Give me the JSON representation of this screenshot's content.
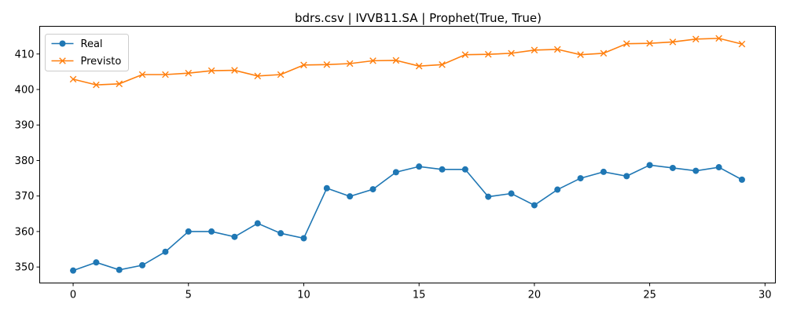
{
  "chart_data": {
    "type": "line",
    "title": "bdrs.csv | IVVB11.SA | Prophet(True, True)",
    "xlabel": "",
    "ylabel": "",
    "x": [
      0,
      1,
      2,
      3,
      4,
      5,
      6,
      7,
      8,
      9,
      10,
      11,
      12,
      13,
      14,
      15,
      16,
      17,
      18,
      19,
      20,
      21,
      22,
      23,
      24,
      25,
      26,
      27,
      28,
      29
    ],
    "xlim": [
      -1.45,
      30.45
    ],
    "ylim": [
      345.5,
      417.8
    ],
    "xticks": [
      0,
      5,
      10,
      15,
      20,
      25,
      30
    ],
    "yticks": [
      350,
      360,
      370,
      380,
      390,
      400,
      410
    ],
    "grid": false,
    "legend_position": "upper-left",
    "series": [
      {
        "name": "Real",
        "color": "#1f77b4",
        "marker": "circle",
        "values": [
          349.0,
          351.3,
          349.2,
          350.5,
          354.3,
          360.0,
          360.0,
          358.5,
          362.3,
          359.5,
          358.1,
          372.2,
          369.9,
          371.9,
          376.7,
          378.3,
          377.5,
          377.5,
          369.8,
          370.7,
          367.4,
          371.8,
          375.0,
          376.8,
          375.6,
          378.7,
          377.9,
          377.1,
          378.1,
          374.6
        ]
      },
      {
        "name": "Previsto",
        "color": "#ff7f0e",
        "marker": "x",
        "values": [
          402.9,
          401.3,
          401.6,
          404.2,
          404.2,
          404.6,
          405.3,
          405.4,
          403.8,
          404.2,
          406.9,
          407.0,
          407.3,
          408.1,
          408.2,
          406.6,
          407.0,
          409.8,
          409.9,
          410.2,
          411.1,
          411.3,
          409.8,
          410.2,
          412.9,
          413.0,
          413.4,
          414.2,
          414.4,
          412.8
        ]
      }
    ]
  }
}
